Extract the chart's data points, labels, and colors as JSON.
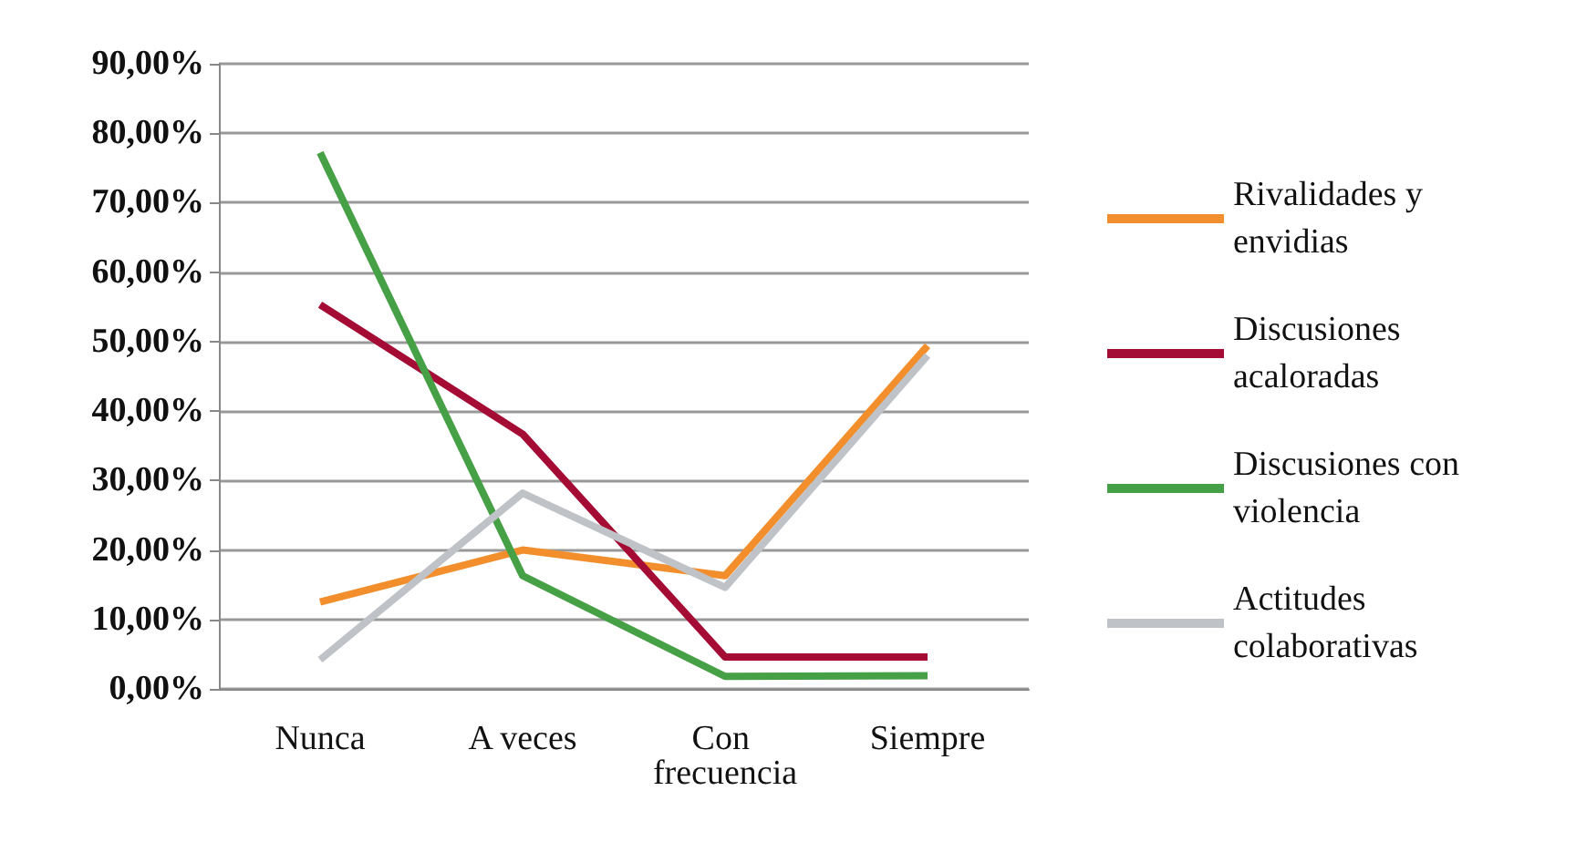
{
  "chart_data": {
    "type": "line",
    "categories": [
      "Nunca",
      "A veces",
      "Con frecuencia",
      "Siempre"
    ],
    "series": [
      {
        "name": "Rivalidades y envidias",
        "color": "#f28e2b",
        "values": [
          12.5,
          20.0,
          16.3,
          49.4
        ]
      },
      {
        "name": "Discusiones acaloradas",
        "color": "#a50c35",
        "values": [
          55.3,
          36.7,
          4.6,
          4.6
        ]
      },
      {
        "name": "Discusiones con violencia",
        "color": "#46a045",
        "values": [
          77.2,
          16.3,
          1.8,
          1.9
        ]
      },
      {
        "name": "Actitudes colaborativas",
        "color": "#bfc3c7",
        "values": [
          4.2,
          28.2,
          14.6,
          48.0
        ]
      }
    ],
    "ylim": [
      0,
      90
    ],
    "yticks": [
      {
        "value": 0,
        "label": "0,00%"
      },
      {
        "value": 10,
        "label": "10,00%"
      },
      {
        "value": 20,
        "label": "20,00%"
      },
      {
        "value": 30,
        "label": "30,00%"
      },
      {
        "value": 40,
        "label": "40,00%"
      },
      {
        "value": 50,
        "label": "50,00%"
      },
      {
        "value": 60,
        "label": "60,00%"
      },
      {
        "value": 70,
        "label": "70,00%"
      },
      {
        "value": 80,
        "label": "80,00%"
      },
      {
        "value": 90,
        "label": "90,00%"
      }
    ],
    "grid": "y",
    "legend": "right",
    "marker": "none",
    "line_style": "solid"
  }
}
